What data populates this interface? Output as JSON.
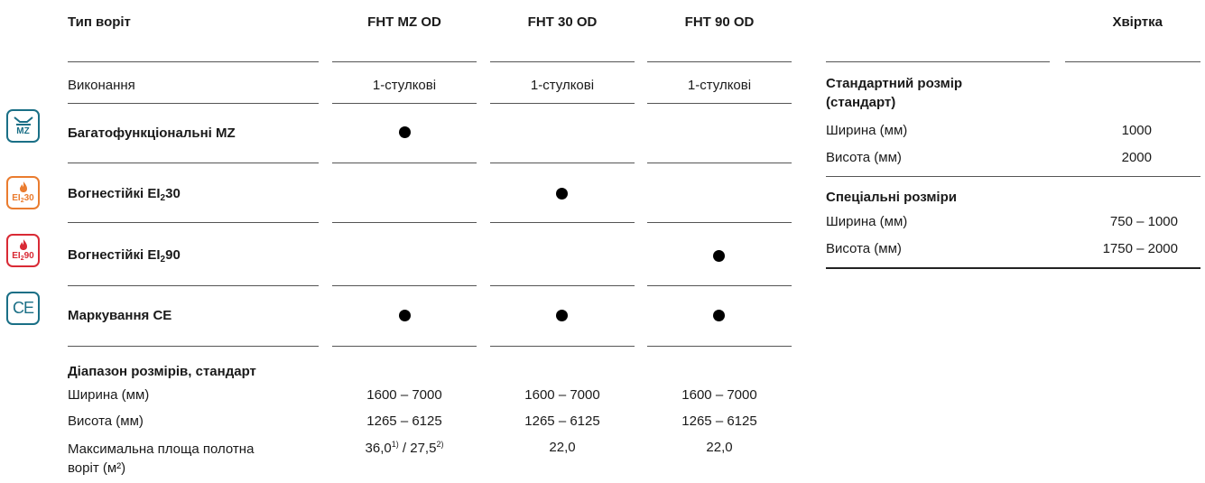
{
  "header": {
    "gate_type": "Тип воріт",
    "col1": "FHT MZ OD",
    "col2": "FHT 30 OD",
    "col3": "FHT 90 OD",
    "wicket": "Хвіртка"
  },
  "execution": {
    "label": "Виконання",
    "col1": "1-стулкові",
    "col2": "1-стулкові",
    "col3": "1-стулкові"
  },
  "features": {
    "mz": {
      "label": "Багатофункціональні MZ",
      "badge": "MZ",
      "icon": "multifunction-icon"
    },
    "ei30": {
      "label_prefix": "Вогнестійкі EI",
      "label_sub": "2",
      "label_suffix": "30",
      "badge_prefix": "EI",
      "badge_sub": "2",
      "badge_suffix": "30",
      "icon": "flame-icon"
    },
    "ei90": {
      "label_prefix": "Вогнестійкі EI",
      "label_sub": "2",
      "label_suffix": "90",
      "badge_prefix": "EI",
      "badge_sub": "2",
      "badge_suffix": "90",
      "icon": "flame-icon"
    },
    "ce": {
      "label": "Маркування CE",
      "badge": "CE",
      "icon": "ce-mark-icon"
    }
  },
  "size_range": {
    "title": "Діапазон розмірів, стандарт",
    "width_label": "Ширина (мм)",
    "height_label": "Висота (мм)",
    "area_label_line1": "Максимальна площа полотна",
    "area_label_line2": "воріт (м²)",
    "width": [
      "1600 – 7000",
      "1600 – 7000",
      "1600 – 7000"
    ],
    "height": [
      "1265 – 6125",
      "1265 – 6125",
      "1265 – 6125"
    ],
    "area_col1_a": "36,0",
    "area_col1_a_sup": "1)",
    "area_col1_sep": " / ",
    "area_col1_b": "27,5",
    "area_col1_b_sup": "2)",
    "area_col2": "22,0",
    "area_col3": "22,0"
  },
  "wicket": {
    "standard_title_line1": "Стандартний розмір",
    "standard_title_line2": "(стандарт)",
    "std_width_label": "Ширина (мм)",
    "std_width": "1000",
    "std_height_label": "Висота (мм)",
    "std_height": "2000",
    "special_title": "Спеціальні розміри",
    "sp_width_label": "Ширина (мм)",
    "sp_width": "750 – 1000",
    "sp_height_label": "Висота (мм)",
    "sp_height": "1750 – 2000"
  },
  "colors": {
    "mz_badge": "#1a6f86",
    "ei30_badge": "#ea7c2f",
    "ei90_badge": "#d92a35",
    "ce_badge": "#1a6f86"
  }
}
